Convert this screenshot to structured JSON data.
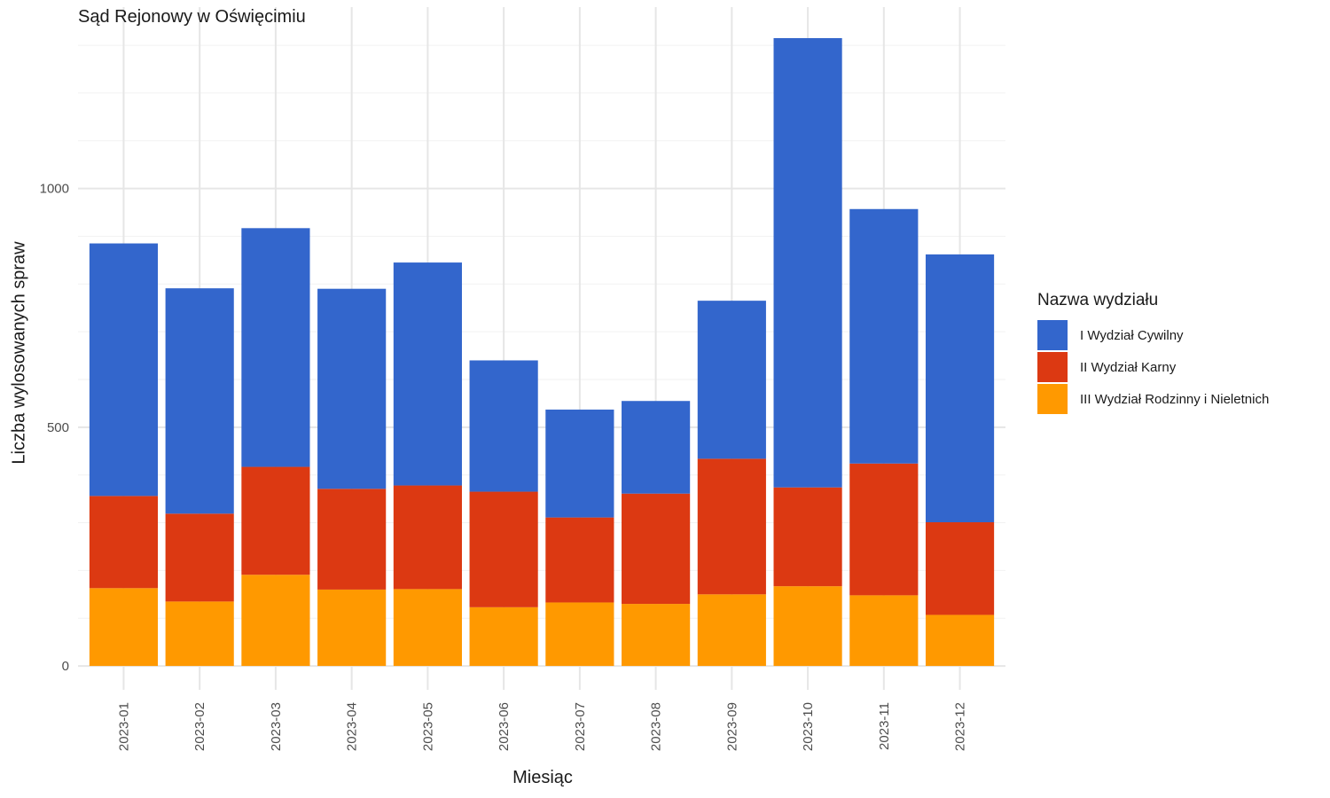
{
  "chart_data": {
    "type": "bar",
    "stacked": true,
    "title": "Sąd Rejonowy w Oświęcimiu",
    "xlabel": "Miesiąc",
    "ylabel": "Liczba wylosowanych spraw",
    "categories": [
      "2023-01",
      "2023-02",
      "2023-03",
      "2023-04",
      "2023-05",
      "2023-06",
      "2023-07",
      "2023-08",
      "2023-09",
      "2023-10",
      "2023-11",
      "2023-12"
    ],
    "yticks": [
      0,
      500,
      1000
    ],
    "ylim": [
      -50,
      1380
    ],
    "grid": true,
    "legend_title": "Nazwa wydziału",
    "legend_position": "right",
    "series": [
      {
        "name": "III Wydział Rodzinny i Nieletnich",
        "color": "#FF9900",
        "values": [
          163,
          135,
          191,
          160,
          161,
          123,
          133,
          130,
          150,
          167,
          148,
          107
        ]
      },
      {
        "name": "II Wydział Karny",
        "color": "#DC3912",
        "values": [
          193,
          184,
          226,
          211,
          217,
          242,
          178,
          231,
          284,
          207,
          276,
          194
        ]
      },
      {
        "name": "I Wydział Cywilny",
        "color": "#3366CC",
        "values": [
          529,
          472,
          500,
          419,
          467,
          275,
          226,
          194,
          331,
          941,
          533,
          561
        ]
      }
    ]
  }
}
